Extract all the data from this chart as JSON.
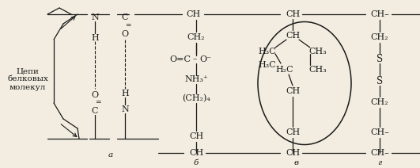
{
  "bg_color": "#f2ede0",
  "line_color": "#1a1a1a",
  "fs": 7.5,
  "fig_width": 5.31,
  "fig_height": 2.12,
  "label_a": "a",
  "label_b": "б",
  "label_c": "в",
  "label_d": "г",
  "text_chains": "Цепи\nбелковых\nмолекул"
}
